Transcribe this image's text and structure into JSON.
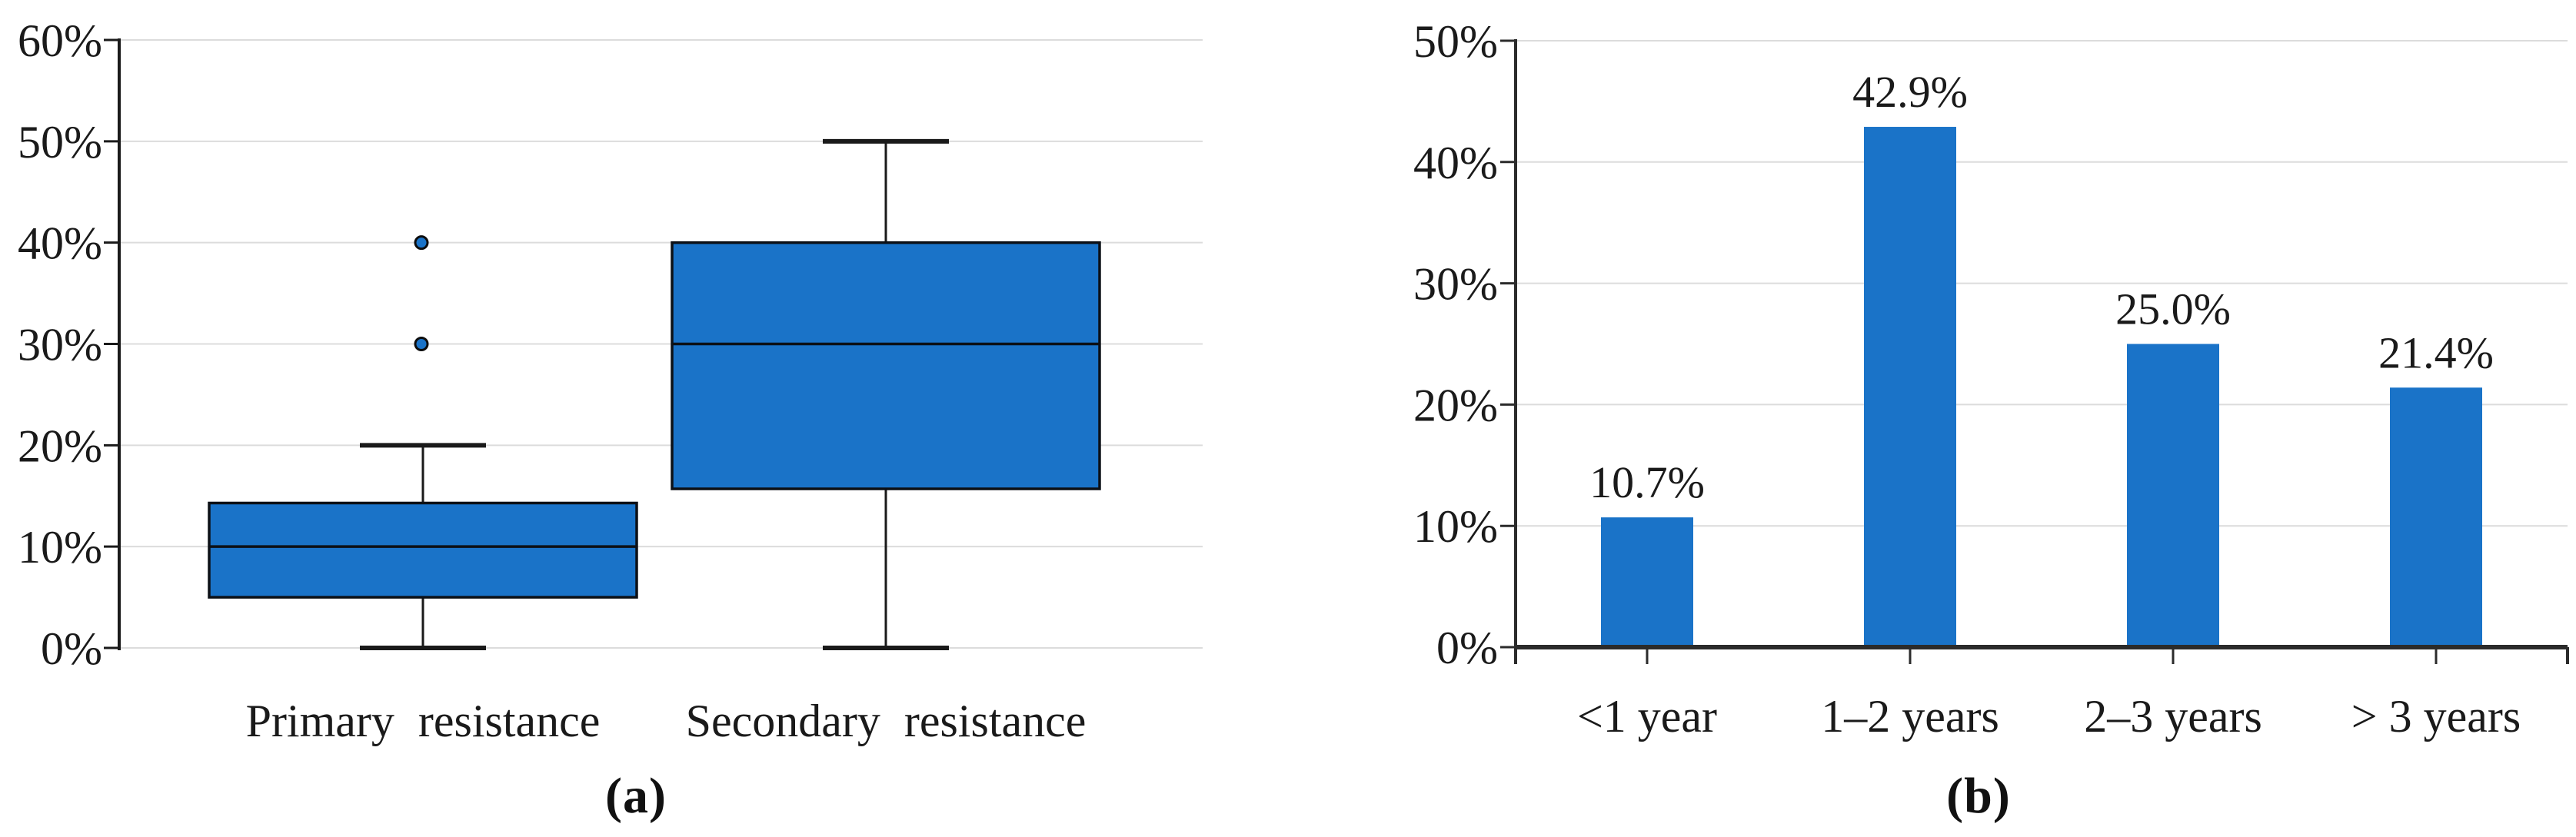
{
  "figure": {
    "panels": [
      {
        "caption": "(a)"
      },
      {
        "caption": "(b)"
      }
    ],
    "colors": {
      "fill_blue": "#1a73c8",
      "box_border": "#0c1016",
      "whisker": "#1a1a1a",
      "outlier_ring": "#0d0d0d",
      "gridline": "#dcdcdc",
      "axis_left": "#1a1a1a",
      "axis_right": "#2b2b2b",
      "text": "#1a1a1a",
      "background": "#ffffff"
    }
  },
  "chart_data": [
    {
      "type": "boxplot",
      "title": "",
      "categories": [
        "Primary resistance",
        "Secondary resistance"
      ],
      "ylim": [
        0,
        60
      ],
      "yticks": [
        0,
        10,
        20,
        30,
        40,
        50,
        60
      ],
      "ytick_labels": [
        "0%",
        "10%",
        "20%",
        "30%",
        "40%",
        "50%",
        "60%"
      ],
      "grid": true,
      "legend_position": "none",
      "series": [
        {
          "name": "Primary resistance",
          "whisker_low": 0,
          "q1": 5,
          "median": 10,
          "q3": 14.3,
          "whisker_high": 20,
          "outliers": [
            30,
            40
          ]
        },
        {
          "name": "Secondary resistance",
          "whisker_low": 0,
          "q1": 15.7,
          "median": 30,
          "q3": 40,
          "whisker_high": 50,
          "outliers": []
        }
      ]
    },
    {
      "type": "bar",
      "title": "",
      "categories": [
        "<1 year",
        "1–2 years",
        "2–3 years",
        "> 3 years"
      ],
      "values": [
        10.7,
        42.9,
        25.0,
        21.4
      ],
      "data_labels": [
        "10.7%",
        "42.9%",
        "25.0%",
        "21.4%"
      ],
      "ylim": [
        0,
        50
      ],
      "yticks": [
        0,
        10,
        20,
        30,
        40,
        50
      ],
      "ytick_labels": [
        "0%",
        "10%",
        "20%",
        "30%",
        "40%",
        "50%"
      ],
      "grid": true,
      "legend_position": "none"
    }
  ]
}
